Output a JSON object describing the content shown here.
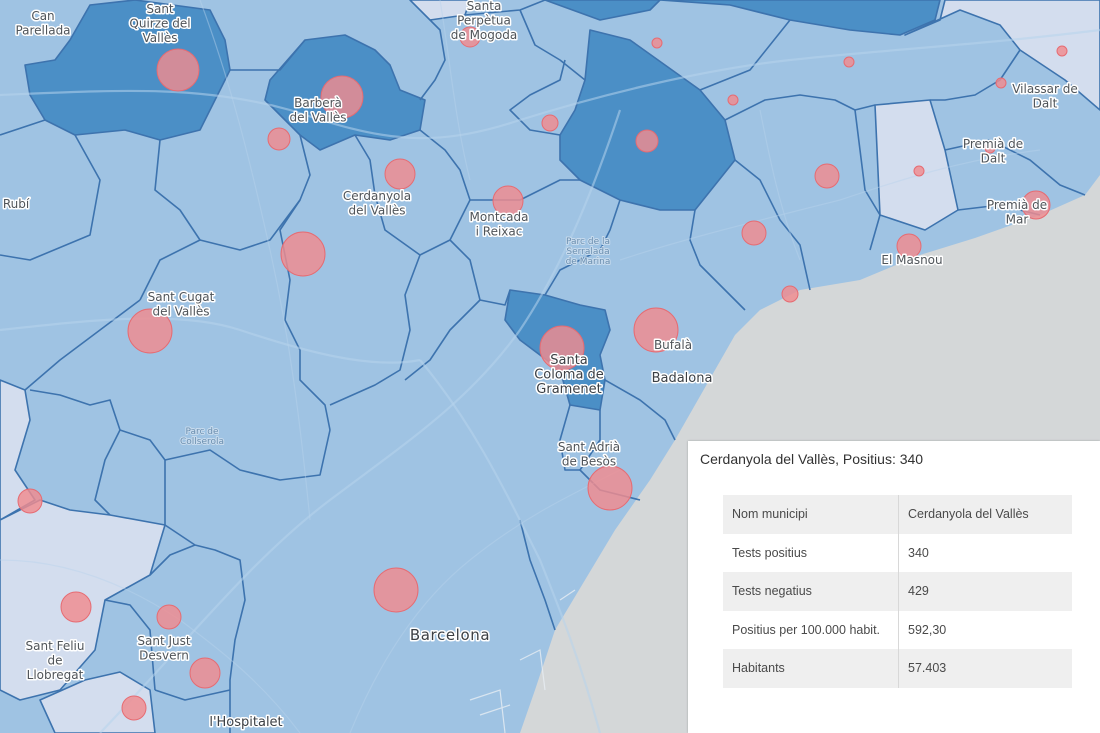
{
  "map": {
    "places": [
      {
        "id": "can-parellada",
        "lines": [
          "Can",
          "Parellada"
        ]
      },
      {
        "id": "sant-quirze",
        "lines": [
          "Sant",
          "Quirze del",
          "Vallès"
        ]
      },
      {
        "id": "santa-perpetua",
        "lines": [
          "Santa",
          "Perpètua",
          "de Mogoda"
        ]
      },
      {
        "id": "barbera",
        "lines": [
          "Barberà",
          "del Vallès"
        ]
      },
      {
        "id": "vilassar-de-dalt",
        "lines": [
          "Vilassar de",
          "Dalt"
        ]
      },
      {
        "id": "premia-de-dalt",
        "lines": [
          "Premià de",
          "Dalt"
        ]
      },
      {
        "id": "premia-de-mar",
        "lines": [
          "Premià de",
          "Mar"
        ]
      },
      {
        "id": "cerdanyola",
        "lines": [
          "Cerdanyola",
          "del Vallès"
        ]
      },
      {
        "id": "montcada",
        "lines": [
          "Montcada",
          "i Reixac"
        ]
      },
      {
        "id": "rubi",
        "lines": [
          "Rubí"
        ]
      },
      {
        "id": "el-masnou",
        "lines": [
          "El Masnou"
        ]
      },
      {
        "id": "sant-cugat",
        "lines": [
          "Sant Cugat",
          "del Vallès"
        ]
      },
      {
        "id": "bufala",
        "lines": [
          "Bufalà"
        ]
      },
      {
        "id": "santa-coloma",
        "lines": [
          "Santa",
          "Coloma de",
          "Gramenet"
        ]
      },
      {
        "id": "badalona",
        "lines": [
          "Badalona"
        ]
      },
      {
        "id": "sant-adria",
        "lines": [
          "Sant Adrià",
          "de Besòs"
        ]
      },
      {
        "id": "barcelona",
        "lines": [
          "Barcelona"
        ]
      },
      {
        "id": "sant-feliu",
        "lines": [
          "Sant Feliu",
          "de",
          "Llobregat"
        ]
      },
      {
        "id": "sant-just",
        "lines": [
          "Sant Just",
          "Desvern"
        ]
      },
      {
        "id": "hospitalet",
        "lines": [
          "l'Hospitalet"
        ]
      }
    ],
    "parks": [
      {
        "id": "serralada-de-marina",
        "lines": [
          "Parc de la",
          "Serralada",
          "de Marina"
        ]
      },
      {
        "id": "collserola",
        "lines": [
          "Parc de",
          "Collserola"
        ]
      }
    ],
    "colors": {
      "sea": "#d4d7d8",
      "base": "#9fc3e3",
      "high": "#4b8fc6",
      "low": "#d3ddee",
      "boundary": "#3d73ae",
      "bubble": "#f08b8f"
    }
  },
  "popup": {
    "title": "Cerdanyola del Vallès, Positius: 340",
    "rows": [
      {
        "key": "Nom municipi",
        "value": "Cerdanyola del Vallès"
      },
      {
        "key": "Tests positius",
        "value": "340"
      },
      {
        "key": "Tests negatius",
        "value": "429"
      },
      {
        "key": "Positius per 100.000 habit.",
        "value": "592,30"
      },
      {
        "key": "Habitants",
        "value": "57.403"
      }
    ]
  }
}
